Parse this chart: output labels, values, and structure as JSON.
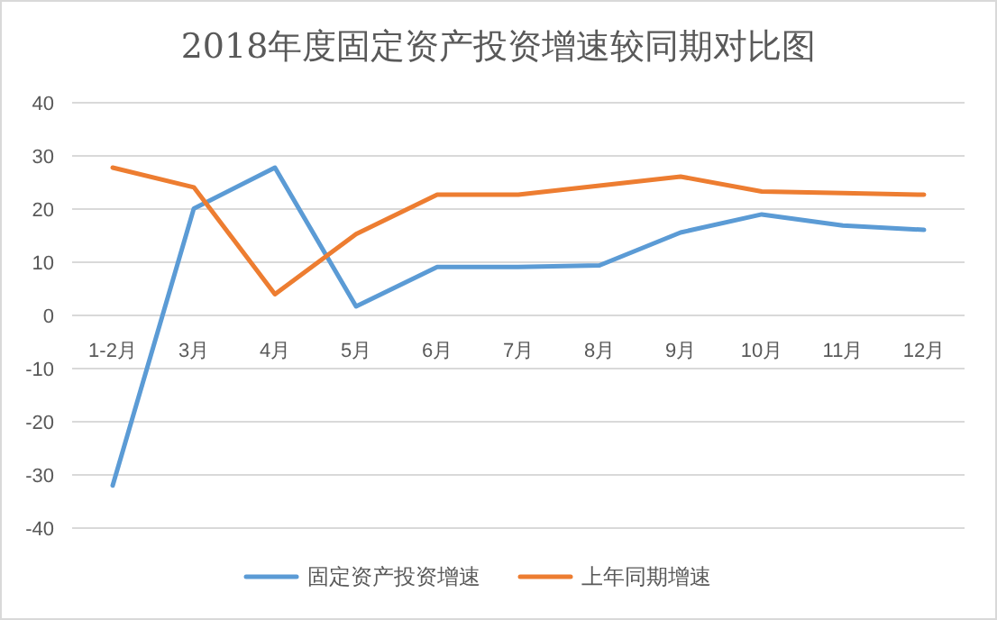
{
  "chart_data": {
    "type": "line",
    "title": "2018年度固定资产投资增速较同期对比图",
    "categories": [
      "1-2月",
      "3月",
      "4月",
      "5月",
      "6月",
      "7月",
      "8月",
      "9月",
      "10月",
      "11月",
      "12月"
    ],
    "series": [
      {
        "name": "固定资产投资增速",
        "color": "#5b9bd5",
        "values": [
          -32,
          20.1,
          27.8,
          1.7,
          9.1,
          9.1,
          9.4,
          15.6,
          19,
          16.9,
          16.1
        ]
      },
      {
        "name": "上年同期增速",
        "color": "#ed7d31",
        "values": [
          27.8,
          24.1,
          4,
          15.3,
          22.7,
          22.7,
          24.4,
          26.1,
          23.3,
          23,
          22.7
        ]
      }
    ],
    "ylim": [
      -40,
      40
    ],
    "yticks": [
      -40,
      -30,
      -20,
      -10,
      0,
      10,
      20,
      30,
      40
    ],
    "grid": "y",
    "legend": "bottom",
    "marker": "none",
    "line_style": "solid"
  }
}
